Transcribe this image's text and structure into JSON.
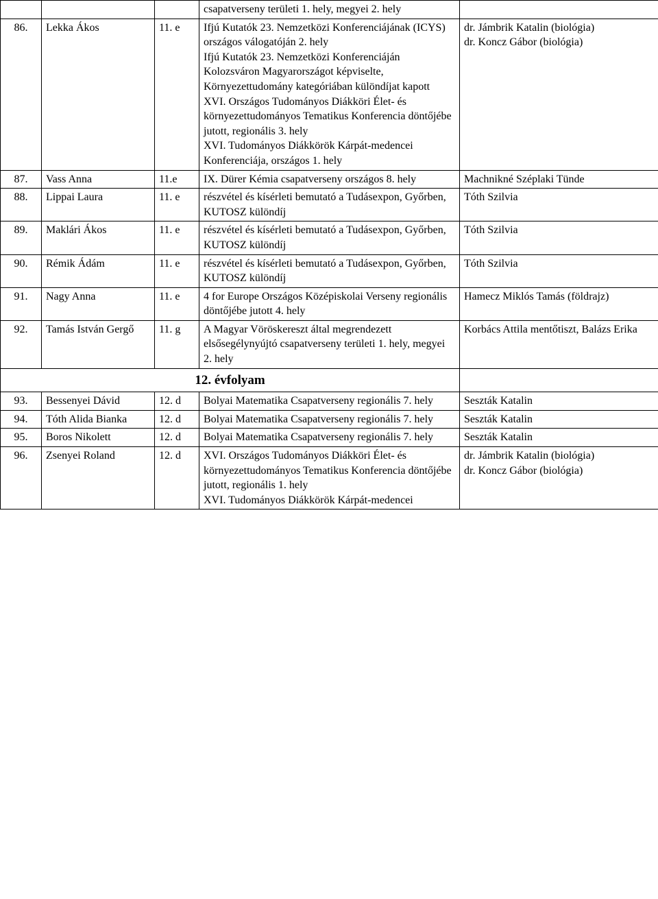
{
  "columns": {
    "num_width": 60,
    "name_width": 165,
    "class_width": 65,
    "result_width": 380,
    "teacher_width": 290
  },
  "colors": {
    "border": "#000000",
    "background": "#ffffff",
    "text": "#000000"
  },
  "typography": {
    "font_family": "Times New Roman",
    "font_size": 16,
    "header_font_size": 19,
    "header_font_weight": "bold"
  },
  "rows": [
    {
      "type": "data",
      "num": "",
      "name": "",
      "class": "",
      "result": "csapatverseny területi 1. hely, megyei 2. hely",
      "teacher": ""
    },
    {
      "type": "data",
      "num": "86.",
      "name": "Lekka Ákos",
      "class": "11. e",
      "result": "Ifjú Kutatók 23. Nemzetközi Konferenciájának (ICYS) országos válogatóján 2. hely\nIfjú Kutatók 23. Nemzetközi Konferenciáján Kolozsváron Magyarországot képviselte, Környezettudomány kategóriában különdíjat kapott\nXVI. Országos Tudományos Diákköri Élet- és környezettudományos Tematikus Konferencia döntőjébe jutott, regionális 3. hely\nXVI. Tudományos Diákkörök Kárpát-medencei Konferenciája, országos 1. hely",
      "teacher": "dr. Jámbrik Katalin (biológia)\ndr. Koncz Gábor (biológia)"
    },
    {
      "type": "data",
      "num": "87.",
      "name": "Vass Anna",
      "class": "11.e",
      "result": "IX. Dürer Kémia csapatverseny országos 8. hely",
      "teacher": "Machnikné Széplaki Tünde"
    },
    {
      "type": "data",
      "num": "88.",
      "name": "Lippai Laura",
      "class": "11. e",
      "result": "részvétel és kísérleti bemutató a Tudásexpon, Győrben, KUTOSZ különdíj",
      "teacher": "Tóth Szilvia"
    },
    {
      "type": "data",
      "num": "89.",
      "name": "Maklári Ákos",
      "class": "11. e",
      "result": "részvétel és kísérleti bemutató a Tudásexpon, Győrben, KUTOSZ különdíj",
      "teacher": "Tóth Szilvia"
    },
    {
      "type": "data",
      "num": "90.",
      "name": "Rémik Ádám",
      "class": "11. e",
      "result": "részvétel és kísérleti bemutató a Tudásexpon, Győrben, KUTOSZ különdíj",
      "teacher": "Tóth Szilvia"
    },
    {
      "type": "data",
      "num": "91.",
      "name": "Nagy Anna",
      "class": "11. e",
      "result": "4 for Europe Országos Középiskolai Verseny regionális döntőjébe jutott 4. hely",
      "teacher": "Hamecz Miklós Tamás (földrajz)"
    },
    {
      "type": "data",
      "num": "92.",
      "name": "Tamás István Gergő",
      "class": "11. g",
      "result": "A Magyar Vöröskereszt által megrendezett elsősegélynyújtó csapatverseny területi 1. hely, megyei 2. hely",
      "teacher": "Korbács Attila mentőtiszt, Balázs Erika"
    },
    {
      "type": "section",
      "label": "12. évfolyam"
    },
    {
      "type": "data",
      "num": "93.",
      "name": "Bessenyei Dávid",
      "class": "12. d",
      "result": "Bolyai Matematika Csapatverseny regionális 7. hely",
      "teacher": "Seszták Katalin"
    },
    {
      "type": "data",
      "num": "94.",
      "name": "Tóth Alida Bianka",
      "class": "12. d",
      "result": "Bolyai Matematika Csapatverseny regionális 7. hely",
      "teacher": "Seszták Katalin"
    },
    {
      "type": "data",
      "num": "95.",
      "name": "Boros Nikolett",
      "class": "12. d",
      "result": "Bolyai Matematika Csapatverseny regionális 7. hely",
      "teacher": "Seszták Katalin"
    },
    {
      "type": "data",
      "num": "96.",
      "name": "Zsenyei Roland",
      "class": "12. d",
      "result": "XVI. Országos Tudományos Diákköri Élet- és környezettudományos Tematikus Konferencia döntőjébe jutott, regionális 1. hely\nXVI. Tudományos Diákkörök Kárpát-medencei",
      "teacher": "dr. Jámbrik Katalin (biológia)\ndr. Koncz Gábor (biológia)"
    }
  ]
}
